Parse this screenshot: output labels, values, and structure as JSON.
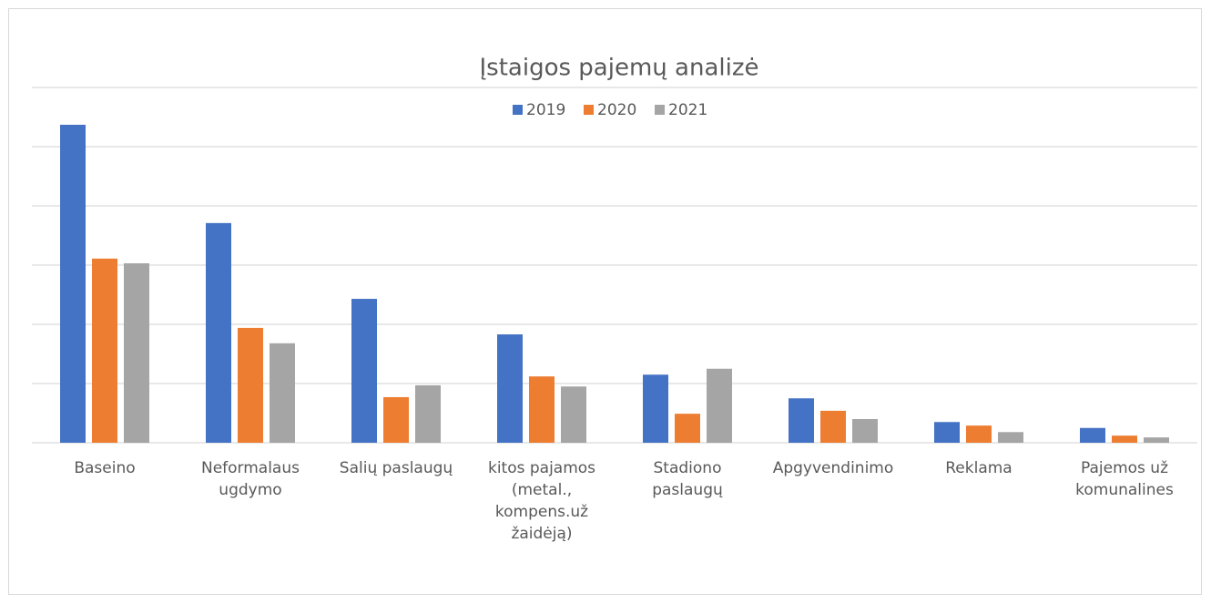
{
  "chart_data": {
    "type": "bar",
    "title": "Įstaigos pajemų analizė",
    "categories": [
      "Baseino",
      "Neformalaus ugdymo",
      "Salių paslaugų",
      "kitos pajamos (metal., kompens.už žaidėją)",
      "Stadiono paslaugų",
      "Apgyvendinimo",
      "Reklama",
      "Pajemos už komunalines"
    ],
    "series": [
      {
        "name": "2019",
        "color": "#4472c4",
        "values": [
          5.37,
          3.71,
          2.43,
          1.83,
          1.15,
          0.75,
          0.35,
          0.25
        ]
      },
      {
        "name": "2020",
        "color": "#ed7d31",
        "values": [
          3.11,
          1.94,
          0.77,
          1.12,
          0.49,
          0.54,
          0.29,
          0.12
        ]
      },
      {
        "name": "2021",
        "color": "#a5a5a5",
        "values": [
          3.03,
          1.68,
          0.97,
          0.95,
          1.25,
          0.4,
          0.18,
          0.09
        ]
      }
    ],
    "ylim": [
      0,
      6
    ],
    "yticks": [
      0,
      1,
      2,
      3,
      4,
      5,
      6
    ],
    "grid": true,
    "legend": "top"
  }
}
